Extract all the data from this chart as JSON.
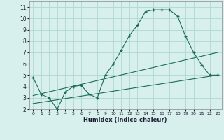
{
  "xlabel": "Humidex (Indice chaleur)",
  "bg_color": "#d8f0ed",
  "grid_color": "#b0d8d0",
  "line_color": "#1a6b5a",
  "xlim": [
    -0.5,
    23.5
  ],
  "ylim": [
    2,
    11.5
  ],
  "yticks": [
    2,
    3,
    4,
    5,
    6,
    7,
    8,
    9,
    10,
    11
  ],
  "xticks": [
    0,
    1,
    2,
    3,
    4,
    5,
    6,
    7,
    8,
    9,
    10,
    11,
    12,
    13,
    14,
    15,
    16,
    17,
    18,
    19,
    20,
    21,
    22,
    23
  ],
  "line1_x": [
    0,
    1,
    2,
    3,
    4,
    5,
    6,
    7,
    8,
    9,
    10,
    11,
    12,
    13,
    14,
    15,
    16,
    17,
    18,
    19,
    20,
    21,
    22,
    23
  ],
  "line1_y": [
    4.8,
    3.3,
    3.0,
    2.0,
    3.5,
    4.0,
    4.1,
    3.3,
    3.0,
    5.0,
    6.0,
    7.2,
    8.5,
    9.4,
    10.6,
    10.75,
    10.75,
    10.75,
    10.2,
    8.4,
    7.0,
    5.9,
    5.0,
    5.0
  ],
  "line2_x": [
    0,
    23
  ],
  "line2_y": [
    2.5,
    5.0
  ],
  "line3_x": [
    0,
    23
  ],
  "line3_y": [
    3.2,
    7.0
  ]
}
